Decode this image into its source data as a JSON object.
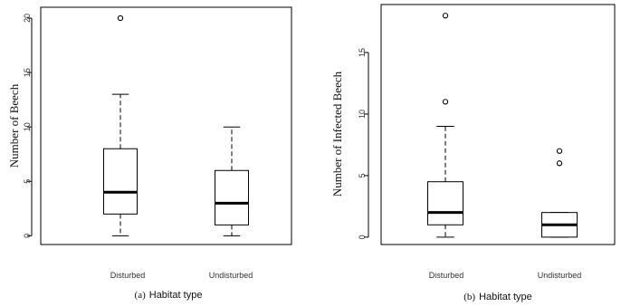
{
  "chart_data": [
    {
      "type": "box",
      "panel_label": "(a)",
      "caption": "Habitat type",
      "ylabel": "Number of Beech",
      "ylim": [
        -0.8,
        21
      ],
      "yticks": [
        0,
        5,
        10,
        15,
        20
      ],
      "categories": [
        "Disturbed",
        "Undisturbed"
      ],
      "boxes": [
        {
          "whisker_low": 0,
          "q1": 2,
          "median": 4,
          "q3": 8,
          "whisker_high": 13,
          "outliers": [
            20
          ]
        },
        {
          "whisker_low": 0,
          "q1": 1,
          "median": 3,
          "q3": 6,
          "whisker_high": 10,
          "outliers": []
        }
      ]
    },
    {
      "type": "box",
      "panel_label": "(b)",
      "caption": "Habitat type",
      "ylabel": "Number of Infected Beech",
      "ylim": [
        -0.6,
        18.9
      ],
      "yticks": [
        0,
        5,
        10,
        15
      ],
      "categories": [
        "Disturbed",
        "Undisturbed"
      ],
      "boxes": [
        {
          "whisker_low": 0,
          "q1": 1,
          "median": 2,
          "q3": 4.5,
          "whisker_high": 9,
          "outliers": [
            11,
            18
          ]
        },
        {
          "whisker_low": 0,
          "q1": 0,
          "median": 1,
          "q3": 2,
          "whisker_high": 2,
          "outliers": [
            6,
            7
          ]
        }
      ]
    }
  ]
}
